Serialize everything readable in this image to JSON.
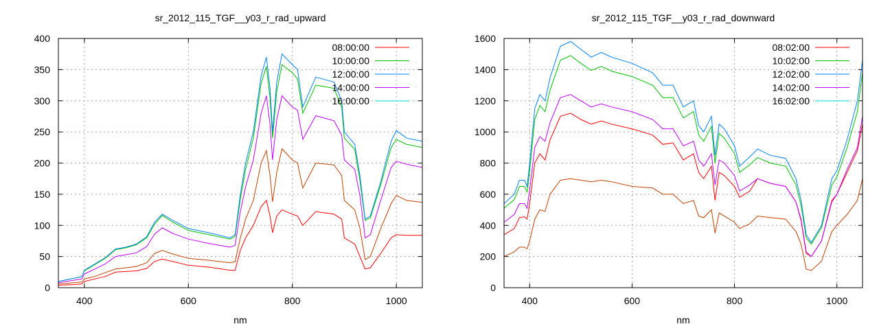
{
  "chart_data": [
    {
      "type": "line",
      "title": "sr_2012_115_TGF__y03_r_rad_upward",
      "xlabel": "nm",
      "ylabel": "",
      "xlim": [
        350,
        1050
      ],
      "ylim": [
        0,
        400
      ],
      "xticks": [
        400,
        600,
        800,
        1000
      ],
      "yticks": [
        0,
        50,
        100,
        150,
        200,
        250,
        300,
        350,
        400
      ],
      "grid": true,
      "legend_position": "top-right",
      "x": [
        350,
        380,
        395,
        400,
        420,
        440,
        460,
        480,
        500,
        520,
        535,
        550,
        570,
        600,
        640,
        680,
        690,
        700,
        710,
        725,
        740,
        750,
        757,
        762,
        770,
        780,
        800,
        810,
        820,
        845,
        880,
        895,
        900,
        920,
        930,
        940,
        950,
        970,
        990,
        1000,
        1020,
        1050
      ],
      "series": [
        {
          "name": "08:00:00",
          "legend_color": "#ff0000",
          "line_color": "#ff0000",
          "values": [
            4,
            5,
            6,
            10,
            14,
            18,
            25,
            26,
            27,
            31,
            42,
            46,
            42,
            36,
            33,
            28,
            28,
            60,
            80,
            100,
            130,
            140,
            115,
            88,
            115,
            125,
            118,
            115,
            100,
            122,
            118,
            110,
            80,
            70,
            50,
            30,
            32,
            55,
            80,
            85,
            84,
            84
          ]
        },
        {
          "name": "10:00:00",
          "legend_color": "#00c000",
          "line_color": "#00c000",
          "values": [
            10,
            15,
            18,
            27,
            37,
            47,
            61,
            64,
            69,
            80,
            102,
            116,
            105,
            92,
            85,
            78,
            82,
            142,
            190,
            240,
            328,
            355,
            305,
            240,
            315,
            358,
            345,
            335,
            280,
            325,
            320,
            290,
            240,
            222,
            172,
            108,
            112,
            165,
            225,
            238,
            230,
            225
          ]
        },
        {
          "name": "12:00:00",
          "legend_color": "#0080ff",
          "line_color": "#0080ff",
          "values": [
            10,
            15,
            18,
            28,
            38,
            48,
            62,
            65,
            70,
            82,
            105,
            118,
            108,
            95,
            88,
            80,
            85,
            150,
            200,
            250,
            340,
            370,
            320,
            250,
            330,
            375,
            358,
            350,
            290,
            338,
            330,
            300,
            250,
            230,
            180,
            110,
            115,
            170,
            235,
            252,
            240,
            235
          ]
        },
        {
          "name": "14:00:00",
          "legend_color": "#c000ff",
          "line_color": "#c000ff",
          "values": [
            8,
            12,
            14,
            22,
            30,
            38,
            50,
            53,
            56,
            66,
            86,
            96,
            87,
            78,
            71,
            65,
            68,
            122,
            162,
            205,
            280,
            308,
            262,
            205,
            270,
            308,
            290,
            285,
            238,
            276,
            268,
            245,
            205,
            190,
            148,
            80,
            85,
            140,
            193,
            203,
            198,
            193
          ]
        },
        {
          "name": "16:00:00",
          "legend_color": "#00e0e0",
          "line_color": "#c04000",
          "values": [
            6,
            8,
            9,
            14,
            18,
            24,
            30,
            32,
            34,
            40,
            55,
            60,
            54,
            47,
            44,
            40,
            42,
            80,
            110,
            140,
            200,
            220,
            180,
            138,
            185,
            223,
            205,
            200,
            160,
            200,
            197,
            180,
            140,
            125,
            95,
            45,
            50,
            95,
            135,
            148,
            140,
            137
          ]
        }
      ]
    },
    {
      "type": "line",
      "title": "sr_2012_115_TGF__y03_r_rad_downward",
      "xlabel": "nm",
      "ylabel": "",
      "xlim": [
        350,
        1050
      ],
      "ylim": [
        0,
        1600
      ],
      "xticks": [
        400,
        600,
        800,
        1000
      ],
      "yticks": [
        0,
        200,
        400,
        600,
        800,
        1000,
        1200,
        1400,
        1600
      ],
      "grid": true,
      "legend_position": "top-right",
      "x": [
        350,
        370,
        380,
        390,
        395,
        400,
        410,
        420,
        430,
        440,
        460,
        480,
        500,
        520,
        540,
        560,
        600,
        640,
        660,
        680,
        700,
        720,
        730,
        740,
        755,
        762,
        770,
        780,
        800,
        810,
        830,
        845,
        870,
        900,
        920,
        930,
        940,
        950,
        970,
        990,
        1000,
        1020,
        1040,
        1050
      ],
      "series": [
        {
          "name": "08:02:00",
          "legend_color": "#ff0000",
          "line_color": "#ff0000",
          "values": [
            340,
            380,
            450,
            455,
            440,
            540,
            800,
            860,
            820,
            950,
            1100,
            1120,
            1080,
            1050,
            1070,
            1050,
            1020,
            980,
            920,
            930,
            820,
            860,
            740,
            700,
            780,
            560,
            740,
            720,
            650,
            580,
            620,
            700,
            670,
            650,
            550,
            430,
            220,
            200,
            300,
            560,
            600,
            740,
            880,
            1050
          ]
        },
        {
          "name": "10:02:00",
          "legend_color": "#00c000",
          "line_color": "#00c000",
          "values": [
            510,
            565,
            650,
            650,
            615,
            750,
            1080,
            1170,
            1130,
            1270,
            1460,
            1490,
            1440,
            1395,
            1420,
            1390,
            1355,
            1300,
            1220,
            1220,
            1090,
            1130,
            980,
            940,
            1035,
            800,
            990,
            960,
            860,
            740,
            790,
            835,
            800,
            780,
            660,
            530,
            320,
            280,
            385,
            660,
            710,
            900,
            1130,
            1380
          ]
        },
        {
          "name": "12:02:00",
          "legend_color": "#0080ff",
          "line_color": "#0080ff",
          "values": [
            540,
            600,
            690,
            690,
            650,
            800,
            1150,
            1240,
            1200,
            1350,
            1550,
            1580,
            1530,
            1480,
            1510,
            1480,
            1440,
            1380,
            1300,
            1300,
            1160,
            1200,
            1040,
            1000,
            1100,
            850,
            1050,
            1020,
            910,
            780,
            840,
            890,
            850,
            830,
            700,
            560,
            340,
            290,
            400,
            700,
            750,
            950,
            1200,
            1460
          ]
        },
        {
          "name": "14:02:00",
          "legend_color": "#c000ff",
          "line_color": "#c000ff",
          "values": [
            420,
            470,
            540,
            540,
            510,
            630,
            900,
            970,
            940,
            1060,
            1220,
            1240,
            1200,
            1160,
            1180,
            1160,
            1130,
            1080,
            1020,
            1020,
            910,
            940,
            820,
            780,
            860,
            660,
            820,
            800,
            720,
            620,
            660,
            700,
            670,
            650,
            550,
            440,
            230,
            200,
            300,
            550,
            600,
            760,
            900,
            1100
          ]
        },
        {
          "name": "16:02:00",
          "legend_color": "#00e0e0",
          "line_color": "#c04000",
          "values": [
            200,
            230,
            260,
            260,
            250,
            300,
            440,
            500,
            490,
            600,
            690,
            700,
            690,
            680,
            690,
            680,
            650,
            640,
            600,
            600,
            540,
            560,
            460,
            450,
            500,
            350,
            480,
            460,
            420,
            380,
            410,
            460,
            450,
            440,
            360,
            280,
            120,
            110,
            170,
            360,
            400,
            470,
            560,
            700
          ]
        }
      ]
    }
  ]
}
